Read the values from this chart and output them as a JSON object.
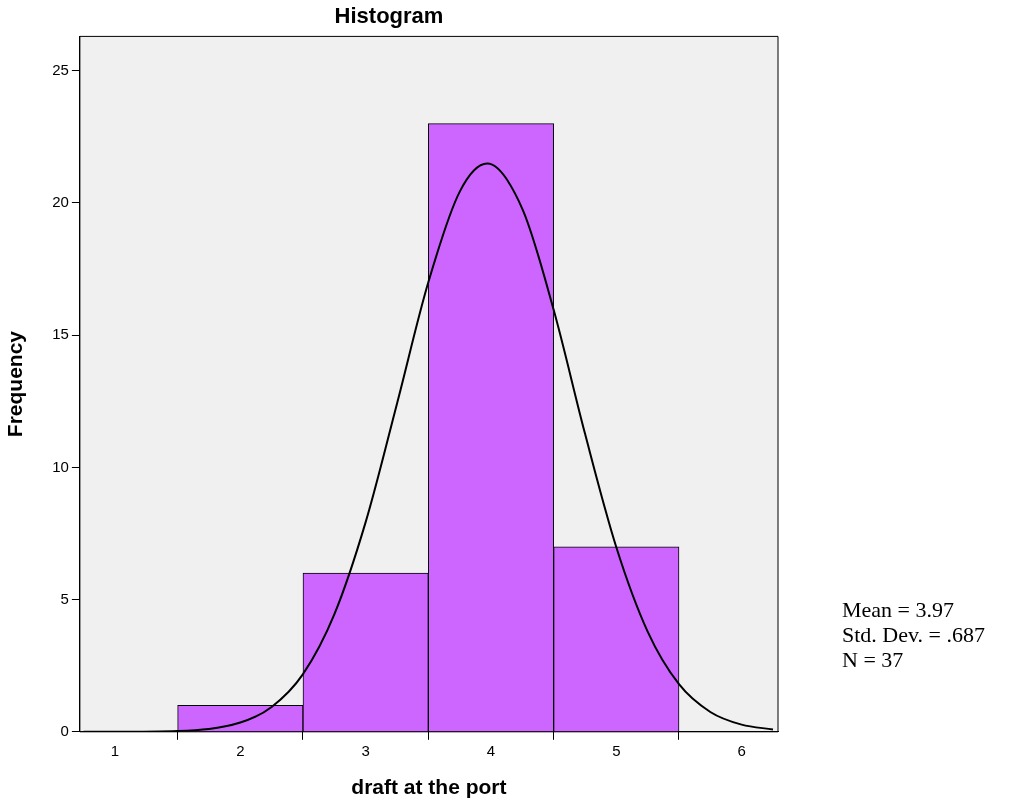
{
  "chart_data": {
    "type": "histogram",
    "title": "Histogram",
    "xlabel": "draft at the port",
    "ylabel": "Frequency",
    "bins": [
      1.5,
      2.5,
      3.5,
      4.5,
      5.5
    ],
    "values": [
      1,
      6,
      23,
      7
    ],
    "color": "#cc66ff",
    "series": [
      {
        "type": "line",
        "color": "#000000",
        "x": [
          0.75,
          1.0,
          1.5,
          2.0,
          2.25,
          2.5,
          2.75,
          3.0,
          3.25,
          3.5,
          3.75,
          3.97,
          4.25,
          4.5,
          4.75,
          5.0,
          5.25,
          5.5,
          5.75,
          6.0,
          6.25
        ],
        "values": [
          0,
          0,
          0.03,
          0.35,
          0.94,
          2.18,
          4.44,
          7.93,
          12.41,
          17.0,
          20.42,
          21.49,
          19.78,
          15.96,
          11.28,
          6.98,
          3.79,
          1.8,
          0.75,
          0.27,
          0.09
        ]
      }
    ],
    "xlim": [
      0.72,
      6.29
    ],
    "xticks": [
      1,
      2,
      3,
      4,
      5,
      6
    ],
    "ylim": [
      0,
      26.3
    ],
    "yticks": [
      0,
      5,
      10,
      15,
      20,
      25
    ],
    "grid": false,
    "legend": false,
    "marker": "none",
    "line_style": "solid",
    "annotations": [
      "Mean = 3.97",
      "Std. Dev. = .687",
      "N = 37"
    ]
  }
}
